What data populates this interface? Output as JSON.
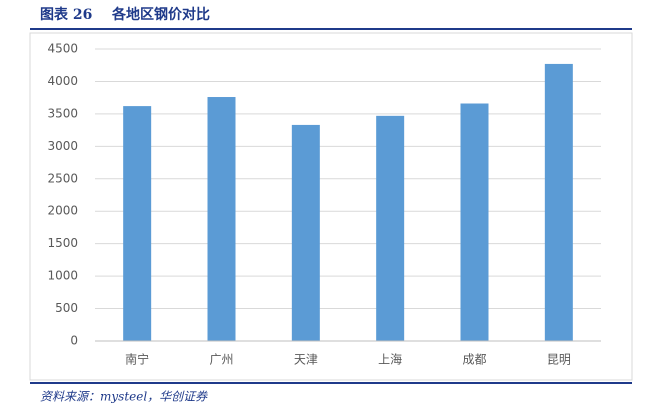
{
  "chart_data": {
    "type": "bar",
    "figure_label": "图表 26",
    "title": "各地区钢价对比",
    "categories": [
      "南宁",
      "广州",
      "天津",
      "上海",
      "成都",
      "昆明"
    ],
    "values": [
      3620,
      3760,
      3330,
      3470,
      3660,
      4270
    ],
    "color": "#5b9bd5",
    "ylim": [
      0,
      4500
    ],
    "yticks": [
      0,
      500,
      1000,
      1500,
      2000,
      2500,
      3000,
      3500,
      4000,
      4500
    ],
    "grid": true,
    "source": "资料来源：mysteel，华创证券"
  }
}
